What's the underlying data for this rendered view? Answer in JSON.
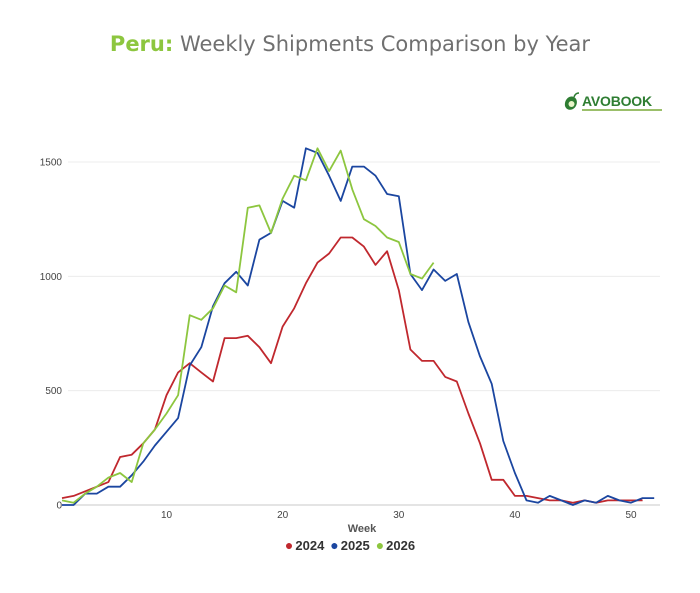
{
  "title": {
    "country": "Peru:",
    "rest": " Weekly Shipments Comparison by Year"
  },
  "logo": {
    "text": "AVOBOOK"
  },
  "chart_data": {
    "type": "line",
    "title": "Peru: Weekly Shipments Comparison by Year",
    "xlabel": "Week",
    "ylabel": "",
    "xlim": [
      1,
      52
    ],
    "ylim": [
      0,
      1500
    ],
    "x_ticks": [
      10,
      20,
      30,
      40,
      50
    ],
    "y_ticks": [
      0,
      500,
      1000,
      1500
    ],
    "grid": true,
    "legend": "bottom",
    "series": [
      {
        "name": "2024",
        "color": "#c0282e",
        "x": [
          1,
          2,
          3,
          4,
          5,
          6,
          7,
          8,
          9,
          10,
          11,
          12,
          13,
          14,
          15,
          16,
          17,
          18,
          19,
          20,
          21,
          22,
          23,
          24,
          25,
          26,
          27,
          28,
          29,
          30,
          31,
          32,
          33,
          34,
          35,
          36,
          37,
          38,
          39,
          40,
          41,
          42,
          43,
          44,
          45,
          46,
          47,
          48,
          49,
          50,
          51
        ],
        "values": [
          30,
          40,
          60,
          80,
          100,
          210,
          220,
          270,
          330,
          480,
          580,
          620,
          580,
          540,
          730,
          730,
          740,
          690,
          620,
          780,
          860,
          970,
          1060,
          1100,
          1170,
          1170,
          1130,
          1050,
          1110,
          940,
          680,
          630,
          630,
          560,
          540,
          400,
          270,
          110,
          110,
          40,
          40,
          30,
          20,
          20,
          10,
          20,
          10,
          20,
          20,
          20,
          20
        ]
      },
      {
        "name": "2025",
        "color": "#1b46a0",
        "x": [
          1,
          2,
          3,
          4,
          5,
          6,
          7,
          8,
          9,
          10,
          11,
          12,
          13,
          14,
          15,
          16,
          17,
          18,
          19,
          20,
          21,
          22,
          23,
          24,
          25,
          26,
          27,
          28,
          29,
          30,
          31,
          32,
          33,
          34,
          35,
          36,
          37,
          38,
          39,
          40,
          41,
          42,
          43,
          44,
          45,
          46,
          47,
          48,
          49,
          50,
          51,
          52
        ],
        "values": [
          0,
          0,
          50,
          50,
          80,
          80,
          130,
          190,
          260,
          320,
          380,
          610,
          690,
          870,
          970,
          1020,
          960,
          1160,
          1190,
          1330,
          1300,
          1560,
          1540,
          1440,
          1330,
          1480,
          1480,
          1440,
          1360,
          1350,
          1010,
          940,
          1030,
          980,
          1010,
          800,
          650,
          530,
          280,
          140,
          20,
          10,
          40,
          20,
          0,
          20,
          10,
          40,
          20,
          10,
          30,
          30
        ]
      },
      {
        "name": "2026",
        "color": "#8dc63f",
        "x": [
          1,
          2,
          3,
          4,
          5,
          6,
          7,
          8,
          9,
          10,
          11,
          12,
          13,
          14,
          15,
          16,
          17,
          18,
          19,
          20,
          21,
          22,
          23,
          24,
          25,
          26,
          27,
          28,
          29,
          30,
          31,
          32,
          33
        ],
        "values": [
          20,
          10,
          50,
          80,
          120,
          140,
          100,
          270,
          330,
          400,
          480,
          830,
          810,
          860,
          960,
          930,
          1300,
          1310,
          1190,
          1340,
          1440,
          1420,
          1560,
          1460,
          1550,
          1380,
          1250,
          1220,
          1170,
          1150,
          1010,
          990,
          1060
        ]
      }
    ]
  }
}
